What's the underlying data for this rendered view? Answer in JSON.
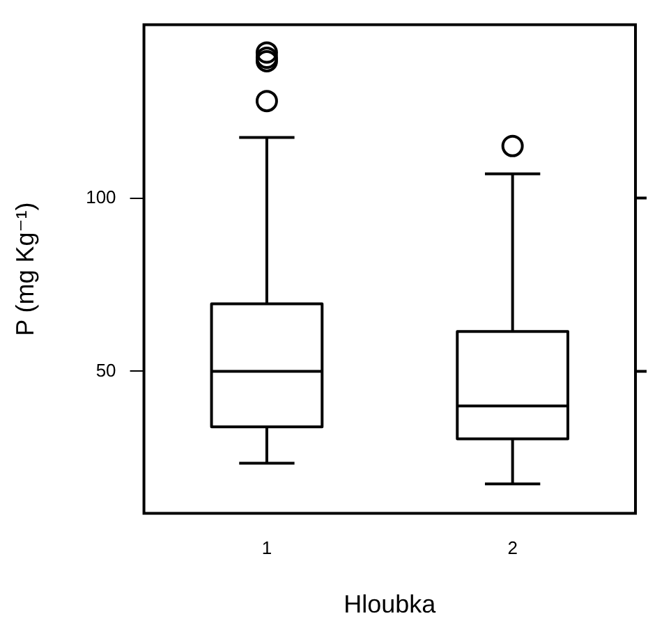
{
  "chart_data": {
    "type": "box",
    "xlabel": "Hloubka",
    "ylabel": "P (mg Kg⁻¹)",
    "categories": [
      "1",
      "2"
    ],
    "boxes": [
      {
        "low": 23.5,
        "q1": 34,
        "median": 50,
        "q3": 69.5,
        "high": 117.5,
        "outliers": [
          128,
          139.5,
          140.5,
          142
        ]
      },
      {
        "low": 17.5,
        "q1": 30.5,
        "median": 40,
        "q3": 61.5,
        "high": 107,
        "outliers": [
          115
        ]
      }
    ],
    "ylim": [
      9,
      150
    ],
    "yticks": [
      50,
      100
    ],
    "grid": false,
    "legend": false,
    "marker": "circle"
  }
}
